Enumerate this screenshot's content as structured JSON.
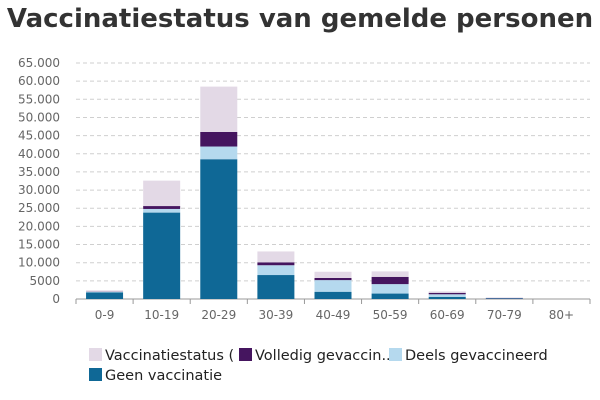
{
  "chart_data": {
    "type": "bar",
    "stacked": true,
    "title": "Vaccinatiestatus van gemelde personen",
    "xlabel": "",
    "ylabel": "",
    "categories": [
      "0-9",
      "10-19",
      "20-29",
      "30-39",
      "40-49",
      "50-59",
      "60-69",
      "70-79",
      "80+"
    ],
    "ylim": [
      0,
      65000
    ],
    "yticks": [
      0,
      5000,
      10000,
      15000,
      20000,
      25000,
      30000,
      35000,
      40000,
      45000,
      50000,
      55000,
      60000,
      65000
    ],
    "ytick_labels": [
      "0",
      "5000",
      "10.000",
      "15.000",
      "20.000",
      "25.000",
      "30.000",
      "35.000",
      "40.000",
      "45.000",
      "50.000",
      "55.000",
      "60.000",
      "65.000"
    ],
    "grid": true,
    "legend_position": "bottom",
    "series": [
      {
        "name": "Geen vaccinatie",
        "legend_label": "Geen vaccinatie",
        "color": "#0f6896",
        "values": [
          1800,
          23800,
          38500,
          6600,
          2000,
          1500,
          600,
          150,
          0
        ]
      },
      {
        "name": "Deels gevaccineerd",
        "legend_label": "Deels gevaccineerd",
        "color": "#b5d9ee",
        "values": [
          200,
          1000,
          3500,
          2700,
          3200,
          2600,
          700,
          50,
          0
        ]
      },
      {
        "name": "Volledig gevaccineerd",
        "legend_label": "Volledig gevaccin...",
        "color": "#45155f",
        "values": [
          50,
          800,
          4000,
          800,
          600,
          2000,
          400,
          100,
          0
        ]
      },
      {
        "name": "Vaccinatiestatus (onbekend)",
        "legend_label": "Vaccinatiestatus (",
        "color": "#e3d9e6",
        "values": [
          350,
          7000,
          12500,
          3000,
          1700,
          1500,
          400,
          50,
          0
        ]
      }
    ],
    "legend_order": [
      "Vaccinatiestatus (onbekend)",
      "Volledig gevaccineerd",
      "Deels gevaccineerd",
      "Geen vaccinatie"
    ]
  }
}
